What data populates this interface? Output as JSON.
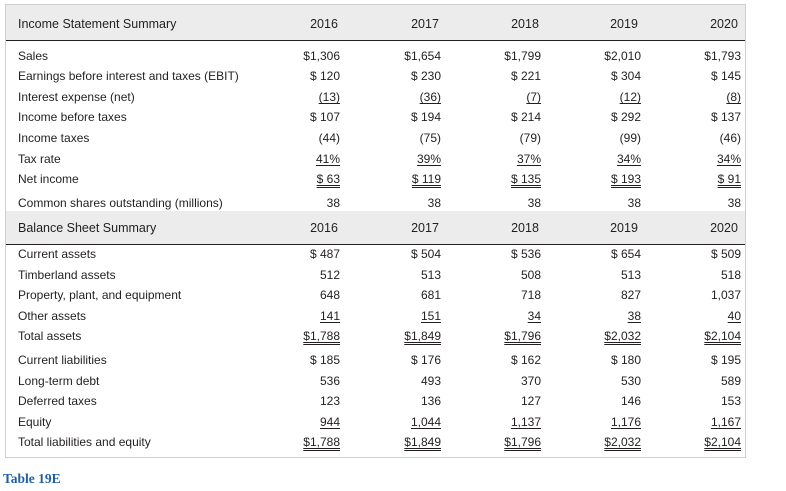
{
  "income_header": {
    "title": "Income Statement Summary",
    "years": [
      "2016",
      "2017",
      "2018",
      "2019",
      "2020"
    ]
  },
  "income_rows": [
    {
      "label": "Sales",
      "values": [
        "$1,306",
        "$1,654",
        "$1,799",
        "$2,010",
        "$1,793"
      ]
    },
    {
      "label": "Earnings before interest and taxes (EBIT)",
      "values": [
        "$ 120",
        "$ 230",
        "$ 221",
        "$ 304",
        "$ 145"
      ]
    },
    {
      "label": "Interest expense (net)",
      "values": [
        "(13)",
        "(36)",
        "(7)",
        "(12)",
        "(8)"
      ]
    },
    {
      "label": "Income before taxes",
      "values": [
        "$ 107",
        "$ 194",
        "$ 214",
        "$ 292",
        "$ 137"
      ]
    },
    {
      "label": "Income taxes",
      "values": [
        "(44)",
        "(75)",
        "(79)",
        "(99)",
        "(46)"
      ]
    },
    {
      "label": "Tax rate",
      "values": [
        "41%",
        "39%",
        "37%",
        "34%",
        "34%"
      ]
    },
    {
      "label": "Net income",
      "values": [
        "$ 63",
        "$ 119",
        "$ 135",
        "$ 193",
        "$ 91"
      ]
    },
    {
      "label": "Common shares outstanding (millions)",
      "values": [
        "38",
        "38",
        "38",
        "38",
        "38"
      ]
    }
  ],
  "balance_header": {
    "title": "Balance Sheet Summary",
    "years": [
      "2016",
      "2017",
      "2018",
      "2019",
      "2020"
    ]
  },
  "balance_rows": [
    {
      "label": "Current assets",
      "values": [
        "$ 487",
        "$ 504",
        "$ 536",
        "$ 654",
        "$ 509"
      ]
    },
    {
      "label": "Timberland assets",
      "values": [
        "512",
        "513",
        "508",
        "513",
        "518"
      ]
    },
    {
      "label": "Property, plant, and equipment",
      "values": [
        "648",
        "681",
        "718",
        "827",
        "1,037"
      ]
    },
    {
      "label": "Other assets",
      "values": [
        "141",
        "151",
        "34",
        "38",
        "40"
      ]
    },
    {
      "label": "Total assets",
      "values": [
        "$1,788",
        "$1,849",
        "$1,796",
        "$2,032",
        "$2,104"
      ]
    },
    {
      "label": "Current liabilities",
      "values": [
        "$ 185",
        "$ 176",
        "$ 162",
        "$ 180",
        "$ 195"
      ]
    },
    {
      "label": "Long-term debt",
      "values": [
        "536",
        "493",
        "370",
        "530",
        "589"
      ]
    },
    {
      "label": "Deferred taxes",
      "values": [
        "123",
        "136",
        "127",
        "146",
        "153"
      ]
    },
    {
      "label": "Equity",
      "values": [
        "944",
        "1,044",
        "1,137",
        "1,176",
        "1,167"
      ]
    },
    {
      "label": "Total liabilities and equity",
      "values": [
        "$1,788",
        "$1,849",
        "$1,796",
        "$2,032",
        "$2,104"
      ]
    }
  ],
  "caption": "Table 19E"
}
